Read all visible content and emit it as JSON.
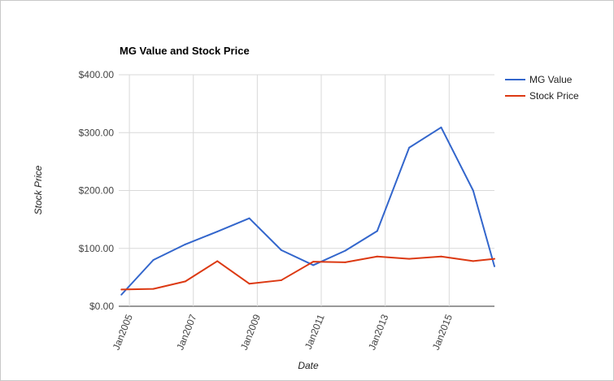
{
  "chart_data": {
    "type": "line",
    "title": "MG Value and Stock Price",
    "xlabel": "Date",
    "ylabel": "Stock Price",
    "x": [
      "2004-10",
      "2005-10",
      "2006-10",
      "2007-10",
      "2008-10",
      "2009-10",
      "2010-10",
      "2011-10",
      "2012-10",
      "2013-10",
      "2014-10",
      "2015-10",
      "2016-06"
    ],
    "xlim": [
      "2004-09",
      "2016-06"
    ],
    "xticks": [
      "Jan2005",
      "Jan2007",
      "Jan2009",
      "Jan2011",
      "Jan2013",
      "Jan2015"
    ],
    "yticks": [
      "$0.00",
      "$100.00",
      "$200.00",
      "$300.00",
      "$400.00"
    ],
    "ylim": [
      0,
      400
    ],
    "grid": true,
    "legend_position": "right",
    "series": [
      {
        "name": "MG Value",
        "color": "#3366cc",
        "values": [
          20,
          80,
          107,
          129,
          152,
          97,
          71,
          96,
          130,
          274,
          309,
          200,
          69
        ]
      },
      {
        "name": "Stock Price",
        "color": "#dc3912",
        "values": [
          29,
          30,
          43,
          78,
          39,
          45,
          77,
          76,
          86,
          82,
          86,
          78,
          82
        ]
      }
    ]
  }
}
